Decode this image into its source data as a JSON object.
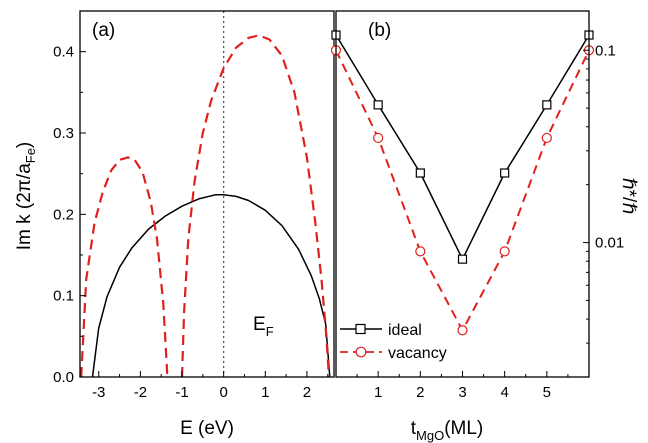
{
  "colors": {
    "black": "#000000",
    "red": "#e0201e",
    "fermi_line": "#555555"
  },
  "chart_data": [
    {
      "panel": "(a)",
      "type": "line",
      "xlabel": "E (eV)",
      "ylabel": "Im k (2π/aFe)",
      "ylabel_parts": {
        "main": "Im k (2π/a",
        "sub": "Fe",
        "end": ")"
      },
      "xlim": [
        -3.45,
        2.65
      ],
      "ylim": [
        0,
        0.45
      ],
      "xticks": [
        -3,
        -2,
        -1,
        0,
        1,
        2
      ],
      "xtick_labels": [
        "-3",
        "-2",
        "-1",
        "0",
        "1",
        "2"
      ],
      "yticks": [
        0.0,
        0.1,
        0.2,
        0.3,
        0.4
      ],
      "ytick_labels": [
        "0.0",
        "0.1",
        "0.2",
        "0.3",
        "0.4"
      ],
      "annotation": {
        "text": "E",
        "sub": "F"
      },
      "vertical_line": {
        "x": 0,
        "style": "dotted"
      },
      "series": [
        {
          "style": "solid",
          "color": "#000000",
          "x": [
            -3.15,
            -3.0,
            -2.8,
            -2.5,
            -2.2,
            -1.8,
            -1.4,
            -1.0,
            -0.6,
            -0.2,
            0.0,
            0.3,
            0.6,
            1.0,
            1.4,
            1.8,
            2.1,
            2.3,
            2.45,
            2.55
          ],
          "y": [
            0.0,
            0.06,
            0.099,
            0.135,
            0.159,
            0.182,
            0.198,
            0.21,
            0.219,
            0.224,
            0.224,
            0.222,
            0.217,
            0.205,
            0.186,
            0.157,
            0.125,
            0.096,
            0.065,
            0.0
          ]
        },
        {
          "style": "dashed",
          "color": "#e0201e",
          "x": [
            -3.42,
            -3.3,
            -3.1,
            -2.9,
            -2.7,
            -2.5,
            -2.3,
            -2.15,
            -1.95,
            -1.75,
            -1.6,
            -1.45,
            -1.35
          ],
          "y": [
            0.0,
            0.12,
            0.19,
            0.228,
            0.254,
            0.267,
            0.27,
            0.268,
            0.252,
            0.215,
            0.17,
            0.09,
            0.0
          ]
        },
        {
          "style": "dashed",
          "color": "#e0201e",
          "x": [
            -1.0,
            -0.95,
            -0.85,
            -0.7,
            -0.5,
            -0.3,
            0.0,
            0.3,
            0.6,
            0.85,
            1.1,
            1.4,
            1.7,
            2.0,
            2.2,
            2.35,
            2.45,
            2.53
          ],
          "y": [
            0.0,
            0.08,
            0.17,
            0.24,
            0.3,
            0.34,
            0.38,
            0.405,
            0.417,
            0.42,
            0.415,
            0.395,
            0.35,
            0.27,
            0.19,
            0.12,
            0.06,
            0.0
          ]
        }
      ]
    },
    {
      "panel": "(b)",
      "type": "line",
      "xlabel": "tMgO(ML)",
      "xlabel_parts": {
        "main": "t",
        "sub": "MgO",
        "end": "(ML)"
      },
      "ylabel": "ℏ*/ℏ",
      "y_scale": "log",
      "xlim": [
        0,
        6
      ],
      "ylim": [
        0.002,
        0.16
      ],
      "xticks": [
        1,
        2,
        3,
        4,
        5
      ],
      "xtick_labels": [
        "1",
        "2",
        "3",
        "4",
        "5"
      ],
      "yticks": [
        0.01,
        0.1
      ],
      "ytick_labels": [
        "0.01",
        "0.1"
      ],
      "legend_position": "bottom-left",
      "series": [
        {
          "name": "ideal",
          "style": "solid",
          "marker": "square",
          "color": "#000000",
          "x": [
            0,
            1,
            2,
            3,
            4,
            5,
            6
          ],
          "y": [
            0.12,
            0.052,
            0.023,
            0.0082,
            0.023,
            0.052,
            0.12
          ]
        },
        {
          "name": "vacancy",
          "style": "dashed",
          "marker": "circle",
          "color": "#e0201e",
          "x": [
            0,
            1,
            2,
            3,
            4,
            5,
            6
          ],
          "y": [
            0.1,
            0.035,
            0.009,
            0.0035,
            0.009,
            0.035,
            0.1
          ]
        }
      ]
    }
  ]
}
